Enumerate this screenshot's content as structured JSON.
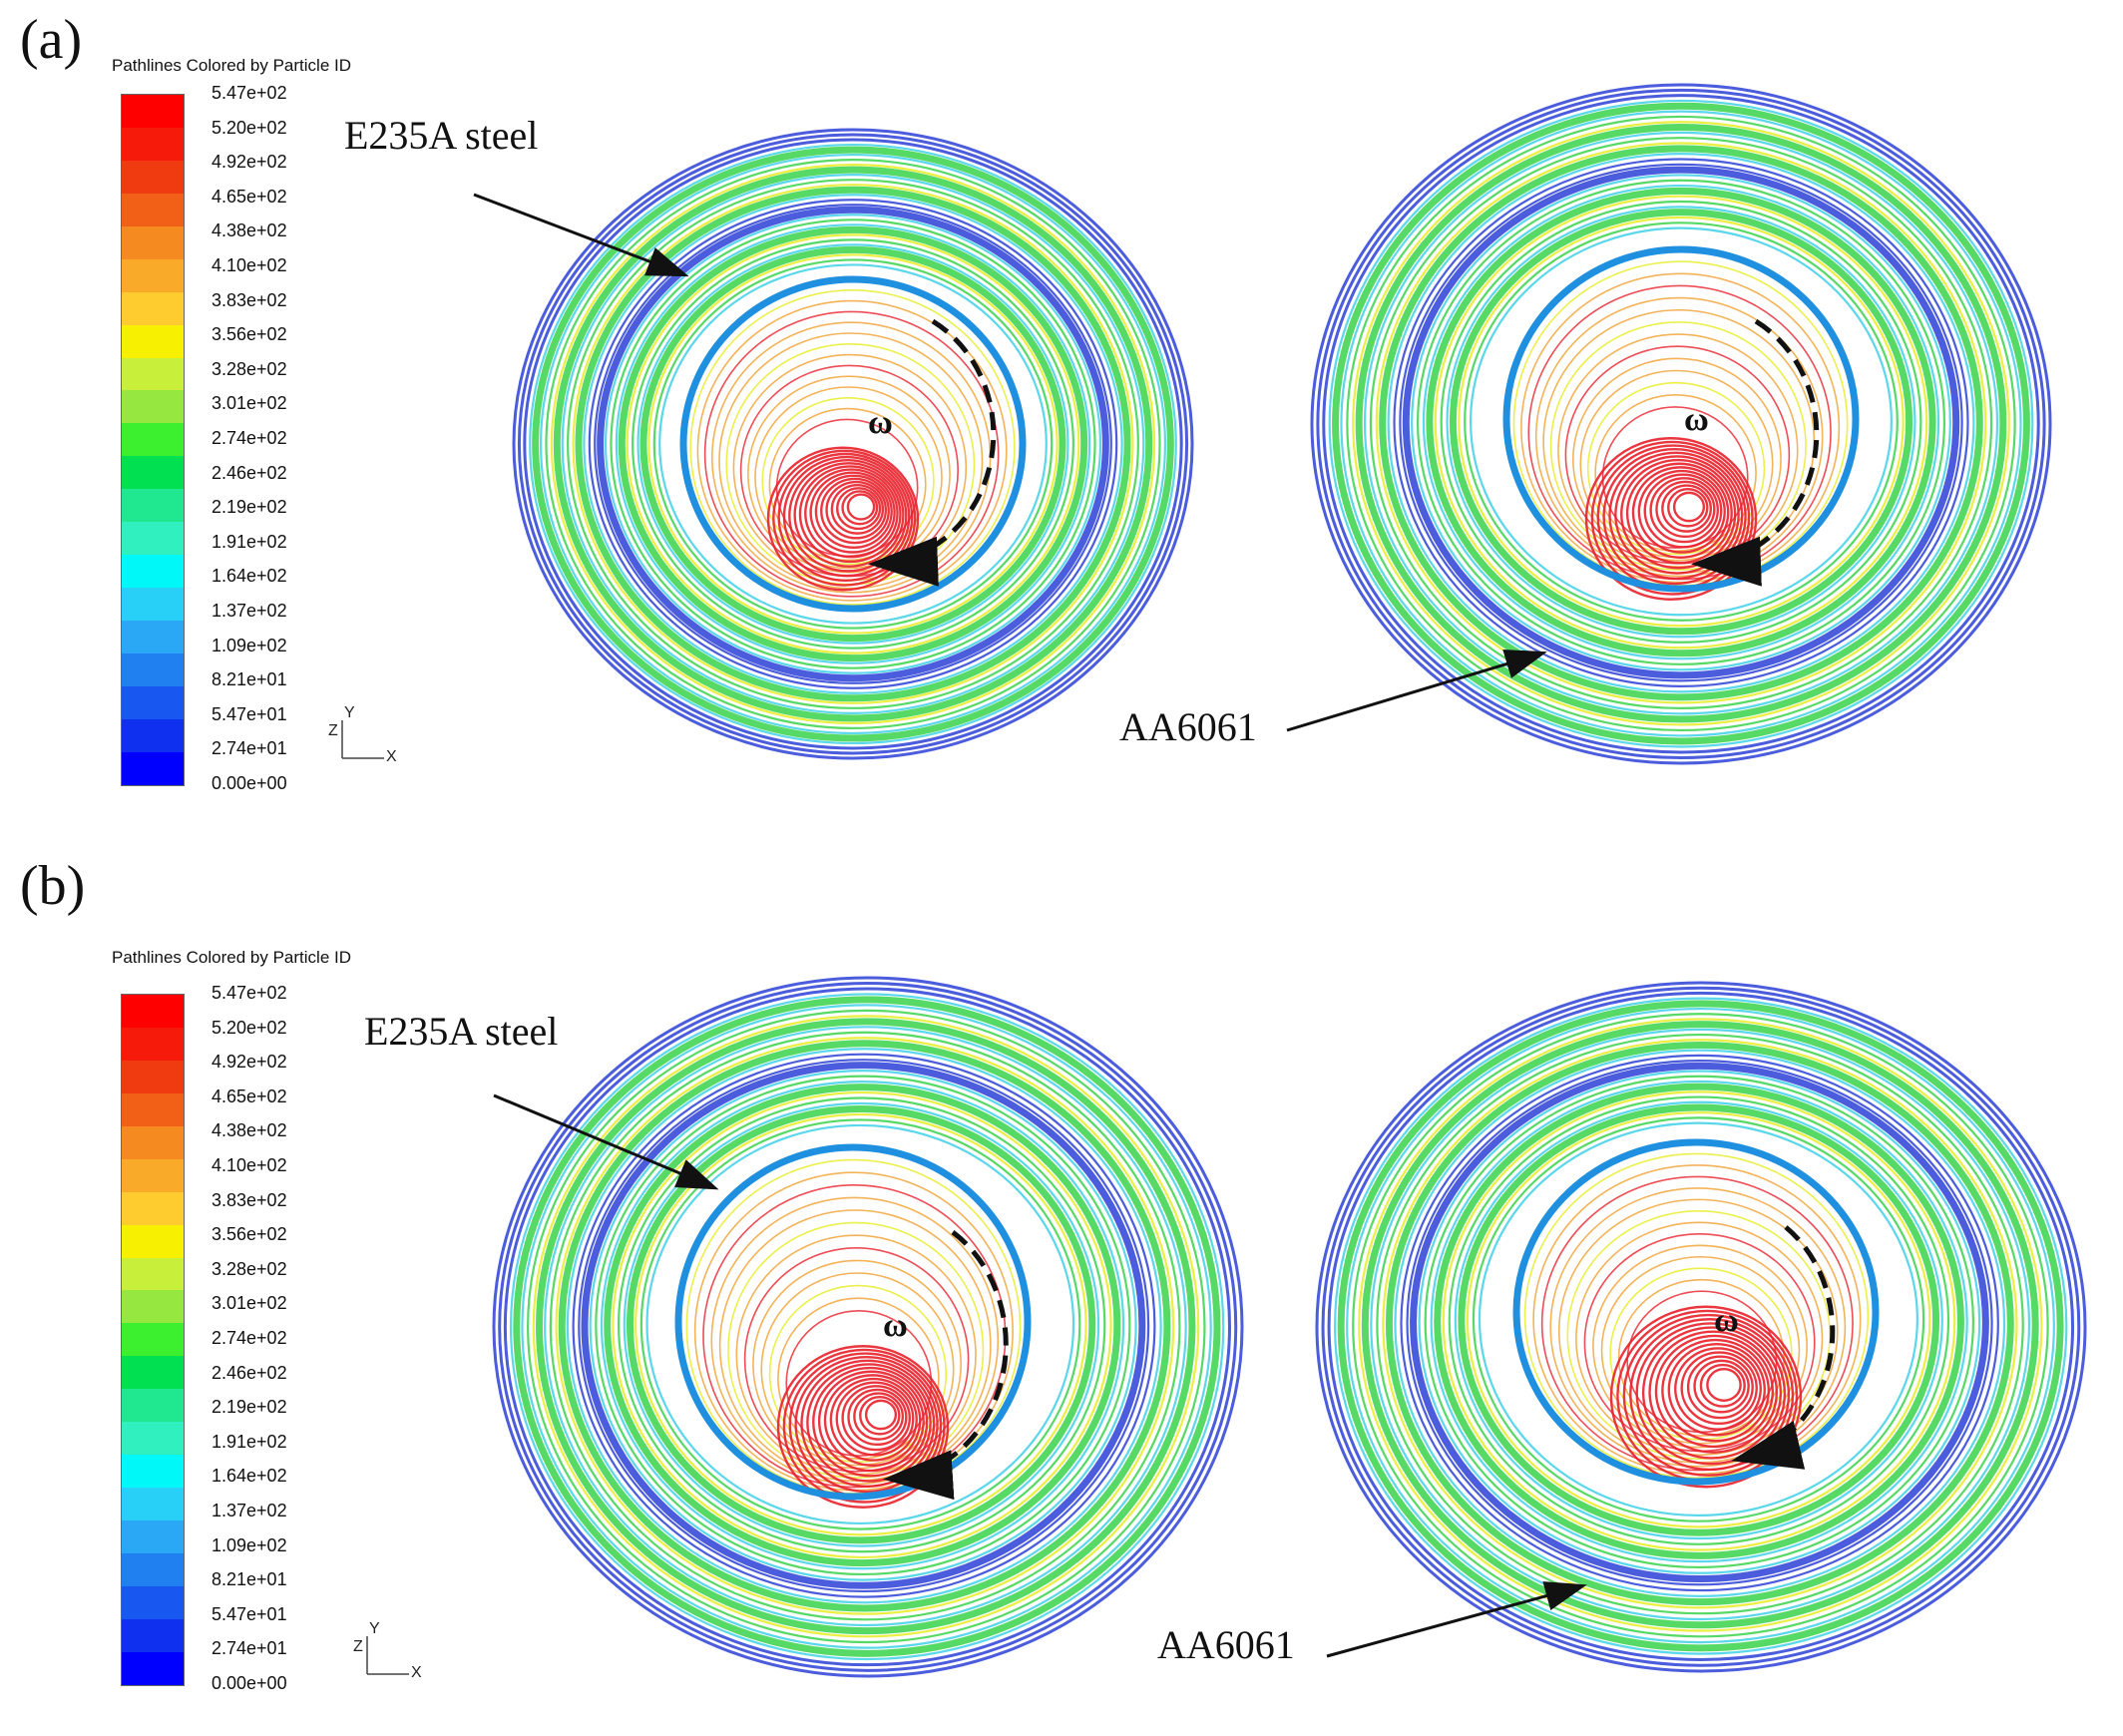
{
  "panels": [
    {
      "label": "(a)",
      "legend_title": "Pathlines Colored by Particle ID",
      "steel_label": "E235A steel",
      "al_label": "AA6061",
      "omega": "ω",
      "axis_x": "X",
      "axis_y": "Y",
      "axis_z": "Z"
    },
    {
      "label": "(b)",
      "legend_title": "Pathlines Colored by Particle ID",
      "steel_label": "E235A steel",
      "al_label": "AA6061",
      "omega": "ω",
      "axis_x": "X",
      "axis_y": "Y",
      "axis_z": "Z"
    }
  ],
  "colorbar_ticks": [
    "5.47e+02",
    "5.20e+02",
    "4.92e+02",
    "4.65e+02",
    "4.38e+02",
    "4.10e+02",
    "3.83e+02",
    "3.56e+02",
    "3.28e+02",
    "3.01e+02",
    "2.74e+02",
    "2.46e+02",
    "2.19e+02",
    "1.91e+02",
    "1.64e+02",
    "1.37e+02",
    "1.09e+02",
    "8.21e+01",
    "5.47e+01",
    "2.74e+01",
    "0.00e+00"
  ],
  "colorbar_colors": [
    "#ff0000",
    "#f51a0a",
    "#f03a10",
    "#f26018",
    "#f58a20",
    "#f8aa28",
    "#ffcc30",
    "#f7f000",
    "#c8f03a",
    "#96e840",
    "#3cf030",
    "#00e050",
    "#20e890",
    "#30f0c0",
    "#00f8f8",
    "#28d0f8",
    "#2aa8f5",
    "#2080f0",
    "#1858f0",
    "#1030f0",
    "#0000ff"
  ],
  "ring_colors": {
    "blue": "#2b3fd6",
    "cyan": "#3ed0e8",
    "green": "#3ad24a",
    "yellow": "#e6ec20",
    "orange": "#f0a030",
    "red": "#e8202a",
    "shoulder": "#1f8fe0"
  }
}
